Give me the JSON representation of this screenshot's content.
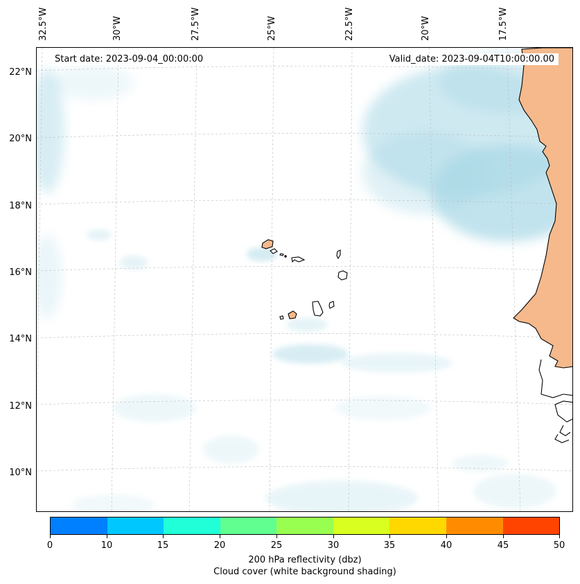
{
  "map": {
    "start_date_text": "Start date: 2023-09-04_00:00:00",
    "valid_date_text": "Valid_date: 2023-09-04T10:00:00.00",
    "longitude_labels": [
      "32.5°W",
      "30°W",
      "27.5°W",
      "25°W",
      "22.5°W",
      "20°W",
      "17.5°W"
    ],
    "latitude_labels": [
      "22°N",
      "20°N",
      "18°N",
      "16°N",
      "14°N",
      "12°N",
      "10°N"
    ],
    "land_color": "#f5b98c",
    "cloud_color": "#a8d8e6",
    "coastline_color": "#000000"
  },
  "colorbar": {
    "ticks": [
      "0",
      "10",
      "15",
      "20",
      "25",
      "30",
      "35",
      "40",
      "45",
      "50"
    ],
    "colors": [
      "#0080ff",
      "#00c8ff",
      "#20ffd8",
      "#60ff90",
      "#98ff50",
      "#d8ff20",
      "#ffd800",
      "#ff8c00",
      "#ff4400"
    ],
    "title_line1": "200 hPa reflectivity (dbz)",
    "title_line2": "Cloud cover (white background shading)"
  }
}
